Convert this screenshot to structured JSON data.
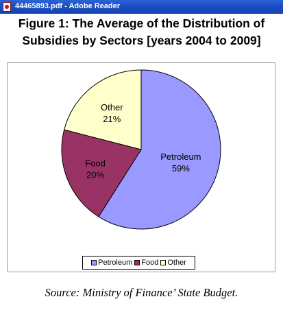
{
  "window": {
    "title": "44465893.pdf - Adobe Reader",
    "icon": "adobe-reader-icon"
  },
  "document": {
    "figure_title_line1": "Figure 1: The Average of the Distribution of",
    "figure_title_line2": "Subsidies by Sectors [years 2004 to 2009]",
    "source": "Source: Ministry of Finance’ State Budget."
  },
  "chart_data": {
    "type": "pie",
    "title": "",
    "slices": [
      {
        "name": "Petroleum",
        "value": 59,
        "label": "59%",
        "color": "#9999ff"
      },
      {
        "name": "Food",
        "value": 20,
        "label": "20%",
        "color": "#993366"
      },
      {
        "name": "Other",
        "value": 21,
        "label": "21%",
        "color": "#ffffcc"
      }
    ],
    "legend": [
      "Petroleum",
      "Food",
      "Other"
    ],
    "legend_position": "bottom"
  }
}
